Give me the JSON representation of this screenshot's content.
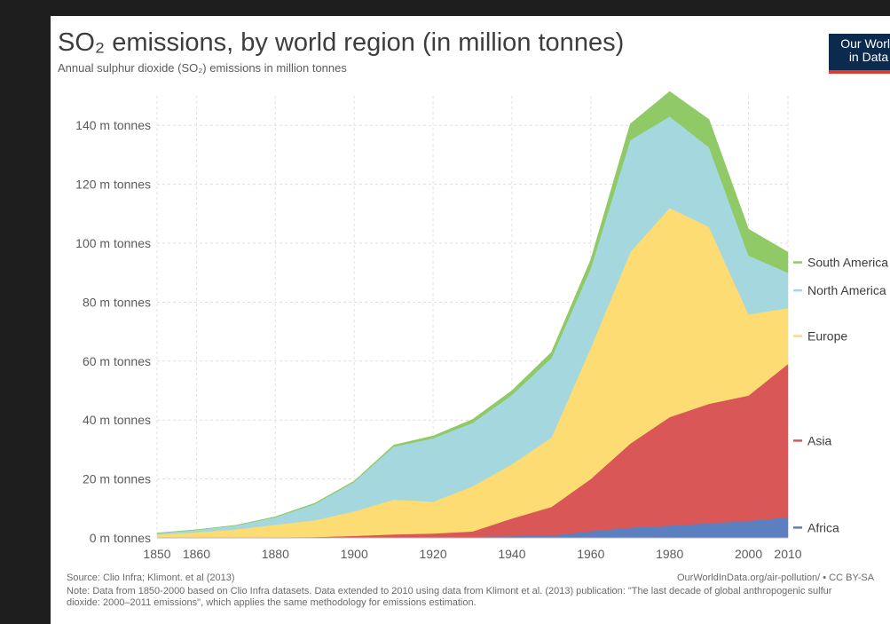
{
  "header": {
    "title": "SO₂ emissions, by world region (in million tonnes)",
    "subtitle": "Annual sulphur dioxide (SO₂) emissions in million tonnes"
  },
  "logo": {
    "line1": "Our World",
    "line2": "in Data"
  },
  "footer": {
    "source": "Source: Clio Infra; Klimont. et al (2013)",
    "credit": "OurWorldInData.org/air-pollution/ • CC BY-SA",
    "note": "Note: Data from 1850-2000 based on Clio Infra datasets. Data extended to 2010 using data from Klimont et al. (2013) publication: \"The last decade of global anthropogenic sulfur dioxide: 2000–2011 emissions\", which applies the same methodology for emissions estimation."
  },
  "chart_data": {
    "type": "area",
    "stacked": true,
    "title": "SO₂ emissions, by world region (in million tonnes)",
    "subtitle": "Annual sulphur dioxide (SO₂) emissions in million tonnes",
    "xlabel": "",
    "ylabel": "",
    "xlim": [
      1850,
      2010
    ],
    "ylim": [
      0,
      150
    ],
    "x": [
      1850,
      1860,
      1870,
      1880,
      1890,
      1900,
      1910,
      1920,
      1930,
      1940,
      1950,
      1960,
      1970,
      1980,
      1990,
      2000,
      2010
    ],
    "x_ticks": [
      1850,
      1860,
      1880,
      1900,
      1920,
      1940,
      1960,
      1980,
      2000,
      2010
    ],
    "y_ticks": [
      0,
      20,
      40,
      60,
      80,
      100,
      120,
      140
    ],
    "y_tick_suffix": " m tonnes",
    "grid": "dashed",
    "legend": "right-inline",
    "series": [
      {
        "name": "Africa",
        "color": "#5b7fbf",
        "values": [
          0,
          0,
          0,
          0,
          0,
          0.1,
          0.2,
          0.3,
          0.4,
          0.6,
          0.8,
          2.3,
          3.5,
          4.2,
          5.0,
          5.8,
          7.0
        ]
      },
      {
        "name": "Asia",
        "color": "#d95757",
        "values": [
          0.1,
          0.1,
          0.1,
          0.2,
          0.3,
          0.6,
          1.0,
          1.2,
          1.8,
          6.0,
          9.7,
          17.7,
          28.5,
          36.8,
          40.5,
          42.5,
          52.0
        ]
      },
      {
        "name": "Europe",
        "color": "#fddc73",
        "values": [
          1.0,
          1.8,
          2.8,
          4.3,
          5.7,
          8.3,
          11.8,
          10.8,
          15.3,
          18.4,
          23.5,
          44.5,
          65.0,
          71.0,
          60.0,
          27.5,
          19.0
        ]
      },
      {
        "name": "North America",
        "color": "#a4d8de",
        "values": [
          0.5,
          0.8,
          1.3,
          2.5,
          5.5,
          10.0,
          18.0,
          21.5,
          21.5,
          23.5,
          27.0,
          27.0,
          38.0,
          31.0,
          27.0,
          20.0,
          12.0
        ]
      },
      {
        "name": "South America",
        "color": "#8fca66",
        "values": [
          0.1,
          0.1,
          0.1,
          0.2,
          0.3,
          0.3,
          0.5,
          0.8,
          1.2,
          1.5,
          2.0,
          3.0,
          5.5,
          8.5,
          9.5,
          9.0,
          7.0
        ]
      }
    ]
  }
}
